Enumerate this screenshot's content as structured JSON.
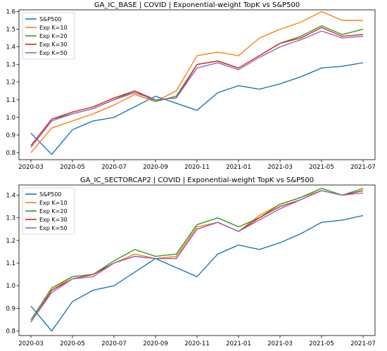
{
  "colors": {
    "S&P500": "#1f77b4",
    "Exp K=10": "#ff7f0e",
    "Exp K=20": "#2ca02c",
    "Exp K=30": "#d62728",
    "Exp K=50": "#9467bd"
  },
  "chart_data": [
    {
      "type": "line",
      "title": "GA_IC_BASE | COVID | Exponential-weight TopK vs S&P500",
      "xlabel": "",
      "ylabel": "",
      "legend_position": "top-left",
      "grid": false,
      "x": [
        "2020-03",
        "2020-04",
        "2020-05",
        "2020-06",
        "2020-07",
        "2020-08",
        "2020-09",
        "2020-10",
        "2020-11",
        "2020-12",
        "2021-01",
        "2021-02",
        "2021-03",
        "2021-04",
        "2021-05",
        "2021-06",
        "2021-07"
      ],
      "x_ticks": [
        "2020-03",
        "2020-05",
        "2020-07",
        "2020-09",
        "2020-11",
        "2021-01",
        "2021-03",
        "2021-05",
        "2021-07"
      ],
      "ylim": [
        0.76,
        1.61
      ],
      "y_ticks": [
        0.8,
        0.9,
        1.0,
        1.1,
        1.2,
        1.3,
        1.4,
        1.5,
        1.6
      ],
      "series": [
        {
          "name": "S&P500",
          "values": [
            0.91,
            0.79,
            0.93,
            0.98,
            1.0,
            1.06,
            1.12,
            1.08,
            1.04,
            1.14,
            1.18,
            1.16,
            1.19,
            1.23,
            1.28,
            1.29,
            1.31
          ]
        },
        {
          "name": "Exp K=10",
          "values": [
            0.8,
            0.94,
            0.98,
            1.02,
            1.07,
            1.13,
            1.09,
            1.15,
            1.35,
            1.37,
            1.35,
            1.45,
            1.5,
            1.54,
            1.6,
            1.55,
            1.55
          ]
        },
        {
          "name": "Exp K=20",
          "values": [
            0.84,
            0.99,
            1.02,
            1.05,
            1.1,
            1.15,
            1.09,
            1.12,
            1.3,
            1.32,
            1.28,
            1.35,
            1.42,
            1.46,
            1.52,
            1.47,
            1.5
          ]
        },
        {
          "name": "Exp K=30",
          "values": [
            0.84,
            0.99,
            1.03,
            1.06,
            1.11,
            1.15,
            1.1,
            1.11,
            1.3,
            1.32,
            1.28,
            1.35,
            1.42,
            1.45,
            1.51,
            1.46,
            1.47
          ]
        },
        {
          "name": "Exp K=50",
          "values": [
            0.83,
            0.98,
            1.02,
            1.05,
            1.1,
            1.14,
            1.1,
            1.11,
            1.28,
            1.31,
            1.27,
            1.34,
            1.4,
            1.44,
            1.49,
            1.45,
            1.46
          ]
        }
      ]
    },
    {
      "type": "line",
      "title": "GA_IC_SECTORCAP2 | COVID | Exponential-weight TopK vs S&P500",
      "xlabel": "",
      "ylabel": "",
      "legend_position": "top-left",
      "grid": false,
      "x": [
        "2020-03",
        "2020-04",
        "2020-05",
        "2020-06",
        "2020-07",
        "2020-08",
        "2020-09",
        "2020-10",
        "2020-11",
        "2020-12",
        "2021-01",
        "2021-02",
        "2021-03",
        "2021-04",
        "2021-05",
        "2021-06",
        "2021-07"
      ],
      "x_ticks": [
        "2020-03",
        "2020-05",
        "2020-07",
        "2020-09",
        "2020-11",
        "2021-01",
        "2021-03",
        "2021-05",
        "2021-07"
      ],
      "ylim": [
        0.78,
        1.445
      ],
      "y_ticks": [
        0.8,
        0.9,
        1.0,
        1.1,
        1.2,
        1.3,
        1.4
      ],
      "series": [
        {
          "name": "S&P500",
          "values": [
            0.91,
            0.8,
            0.93,
            0.98,
            1.0,
            1.06,
            1.12,
            1.08,
            1.04,
            1.14,
            1.18,
            1.16,
            1.19,
            1.23,
            1.28,
            1.29,
            1.31
          ]
        },
        {
          "name": "Exp K=10",
          "values": [
            0.84,
            0.98,
            1.04,
            1.05,
            1.1,
            1.14,
            1.12,
            1.13,
            1.26,
            1.28,
            1.24,
            1.31,
            1.36,
            1.39,
            1.42,
            1.4,
            1.42
          ]
        },
        {
          "name": "Exp K=20",
          "values": [
            0.85,
            0.99,
            1.04,
            1.05,
            1.11,
            1.16,
            1.13,
            1.14,
            1.27,
            1.3,
            1.26,
            1.3,
            1.36,
            1.39,
            1.43,
            1.4,
            1.43
          ]
        },
        {
          "name": "Exp K=30",
          "values": [
            0.84,
            0.98,
            1.03,
            1.05,
            1.1,
            1.13,
            1.12,
            1.12,
            1.25,
            1.28,
            1.24,
            1.3,
            1.35,
            1.38,
            1.42,
            1.4,
            1.42
          ]
        },
        {
          "name": "Exp K=50",
          "values": [
            0.84,
            0.97,
            1.03,
            1.04,
            1.1,
            1.13,
            1.12,
            1.12,
            1.25,
            1.28,
            1.24,
            1.29,
            1.34,
            1.38,
            1.42,
            1.4,
            1.41
          ]
        }
      ]
    }
  ]
}
